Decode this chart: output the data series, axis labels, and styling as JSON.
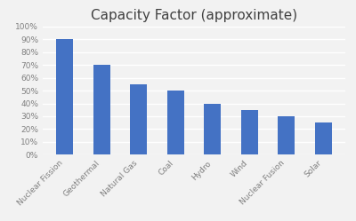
{
  "title": "Capacity Factor (approximate)",
  "categories": [
    "Nuclear Fission",
    "Geothermal",
    "Natural Gas",
    "Coal",
    "Hydro",
    "Wind",
    "Nuclear Fusion",
    "Solar"
  ],
  "values": [
    0.9,
    0.7,
    0.55,
    0.5,
    0.4,
    0.35,
    0.3,
    0.25
  ],
  "bar_color": "#4472C4",
  "ylim": [
    0,
    1.0
  ],
  "yticks": [
    0.0,
    0.1,
    0.2,
    0.3,
    0.4,
    0.5,
    0.6,
    0.7,
    0.8,
    0.9,
    1.0
  ],
  "ytick_labels": [
    "0%",
    "10%",
    "20%",
    "30%",
    "40%",
    "50%",
    "60%",
    "70%",
    "80%",
    "90%",
    "100%"
  ],
  "fig_background_color": "#F2F2F2",
  "plot_background_color": "#F2F2F2",
  "title_fontsize": 11,
  "tick_fontsize": 6.5,
  "title_color": "#404040",
  "tick_color": "#808080",
  "grid_color": "#FFFFFF",
  "bar_width": 0.45
}
